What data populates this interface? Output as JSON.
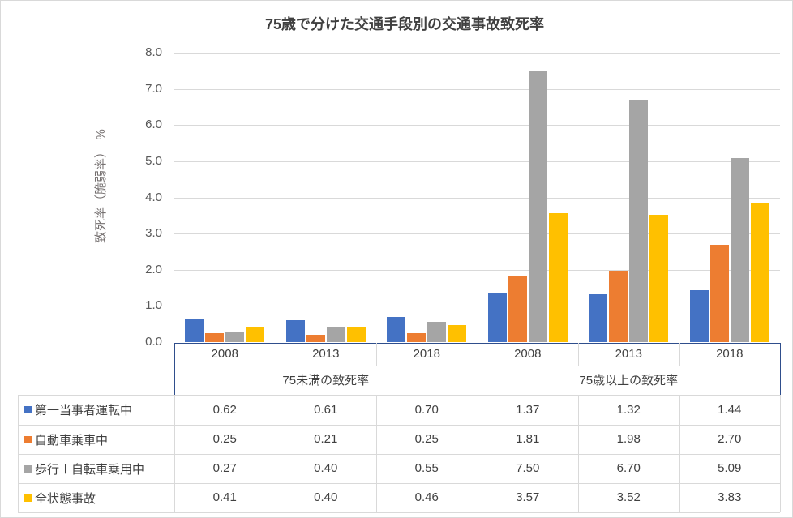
{
  "chart_data": {
    "type": "bar",
    "title": "75歳で分けた交通手段別の交通事故致死率",
    "ylabel": "致死率（脆弱率）　%",
    "ylim": [
      0,
      8
    ],
    "yticks": [
      "0.0",
      "1.0",
      "2.0",
      "3.0",
      "4.0",
      "5.0",
      "6.0",
      "7.0",
      "8.0"
    ],
    "grid": true,
    "legend_placement": "data-table",
    "groups": [
      "75未満の致死率",
      "75歳以上の致死率"
    ],
    "categories": [
      "2008",
      "2013",
      "2018",
      "2008",
      "2013",
      "2018"
    ],
    "series": [
      {
        "name": "第一当事者運転中",
        "color": "#4472c4",
        "values": [
          0.62,
          0.61,
          0.7,
          1.37,
          1.32,
          1.44
        ],
        "labels": [
          "0.62",
          "0.61",
          "0.70",
          "1.37",
          "1.32",
          "1.44"
        ]
      },
      {
        "name": "自動車乗車中",
        "color": "#ed7d31",
        "values": [
          0.25,
          0.21,
          0.25,
          1.81,
          1.98,
          2.7
        ],
        "labels": [
          "0.25",
          "0.21",
          "0.25",
          "1.81",
          "1.98",
          "2.70"
        ]
      },
      {
        "name": "歩行＋自転車乗用中",
        "color": "#a5a5a5",
        "values": [
          0.27,
          0.4,
          0.55,
          7.5,
          6.7,
          5.09
        ],
        "labels": [
          "0.27",
          "0.40",
          "0.55",
          "7.50",
          "6.70",
          "5.09"
        ]
      },
      {
        "name": "全状態事故",
        "color": "#ffc000",
        "values": [
          0.41,
          0.4,
          0.46,
          3.57,
          3.52,
          3.83
        ],
        "labels": [
          "0.41",
          "0.40",
          "0.46",
          "3.57",
          "3.52",
          "3.83"
        ]
      }
    ]
  }
}
